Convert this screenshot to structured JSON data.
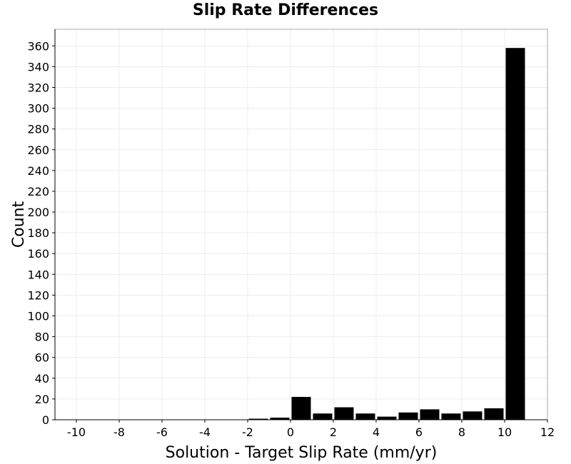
{
  "chart_data": {
    "type": "bar",
    "title": "Slip Rate Differences",
    "xlabel": "Solution - Target Slip Rate (mm/yr)",
    "ylabel": "Count",
    "xlim": [
      -11,
      12
    ],
    "ylim": [
      0,
      376
    ],
    "xticks": [
      -10,
      -8,
      -6,
      -4,
      -2,
      0,
      2,
      4,
      6,
      8,
      10,
      12
    ],
    "yticks": [
      0,
      20,
      40,
      60,
      80,
      100,
      120,
      140,
      160,
      180,
      200,
      220,
      240,
      260,
      280,
      300,
      320,
      340,
      360
    ],
    "grid": true,
    "bar_color": "#000000",
    "bins": [
      {
        "x": -10.5,
        "count": 0
      },
      {
        "x": -9.5,
        "count": 0
      },
      {
        "x": -8.5,
        "count": 0
      },
      {
        "x": -7.5,
        "count": 0
      },
      {
        "x": -6.5,
        "count": 0
      },
      {
        "x": -5.5,
        "count": 0
      },
      {
        "x": -4.5,
        "count": 0
      },
      {
        "x": -3.5,
        "count": 0
      },
      {
        "x": -2.5,
        "count": 0
      },
      {
        "x": -1.5,
        "count": 1
      },
      {
        "x": -0.5,
        "count": 2
      },
      {
        "x": 0.5,
        "count": 22
      },
      {
        "x": 1.5,
        "count": 6
      },
      {
        "x": 2.5,
        "count": 12
      },
      {
        "x": 3.5,
        "count": 6
      },
      {
        "x": 4.5,
        "count": 3
      },
      {
        "x": 5.5,
        "count": 7
      },
      {
        "x": 6.5,
        "count": 10
      },
      {
        "x": 7.5,
        "count": 6
      },
      {
        "x": 8.5,
        "count": 8
      },
      {
        "x": 9.5,
        "count": 11
      },
      {
        "x": 10.5,
        "count": 358
      }
    ]
  }
}
